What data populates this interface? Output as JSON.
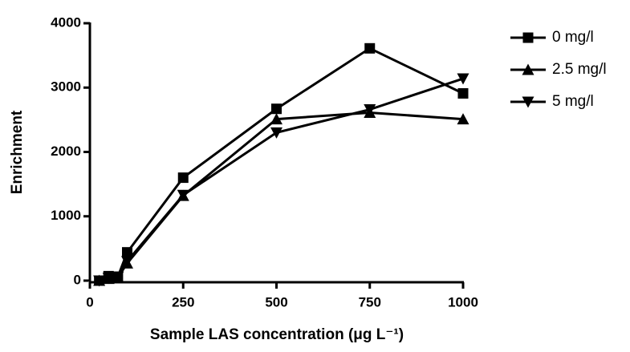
{
  "chart_data": {
    "type": "line",
    "x_label": "Sample LAS concentration (μg L⁻¹)",
    "y_label": "Enrichment",
    "x": [
      25,
      50,
      75,
      100,
      250,
      500,
      750,
      1000
    ],
    "series": [
      {
        "name": "0 mg/l",
        "color": "#000000",
        "marker": "square",
        "values": [
          0,
          70,
          60,
          440,
          1600,
          2670,
          3610,
          2910
        ]
      },
      {
        "name": "2.5 mg/l",
        "color": "#000000",
        "marker": "triangle-up",
        "values": [
          0,
          30,
          50,
          270,
          1320,
          2510,
          2610,
          2510
        ]
      },
      {
        "name": "5 mg/l",
        "color": "#000000",
        "marker": "triangle-down",
        "values": [
          0,
          40,
          60,
          300,
          1330,
          2300,
          2660,
          3140
        ]
      }
    ],
    "xlim": [
      0,
      1000
    ],
    "xticks": [
      0,
      250,
      500,
      750,
      1000
    ],
    "ylim": [
      0,
      4000
    ],
    "yticks": [
      0,
      1000,
      2000,
      3000,
      4000
    ],
    "legend": "right"
  }
}
